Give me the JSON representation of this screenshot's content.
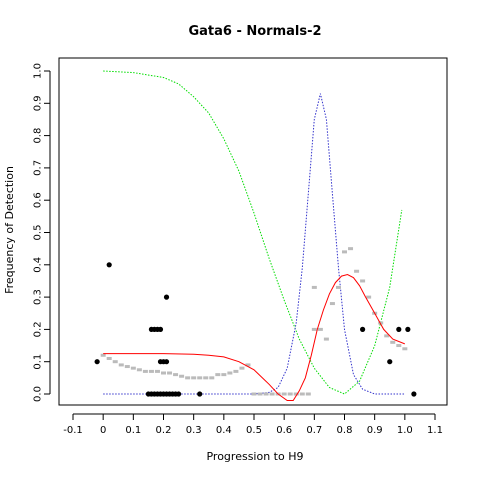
{
  "chart_data": {
    "type": "scatter",
    "title": "Gata6 - Normals-2",
    "xlabel": "Progression to H9",
    "ylabel": "Frequency of Detection",
    "xlim": [
      -0.1,
      1.1
    ],
    "ylim": [
      0.0,
      1.0
    ],
    "x_ticks": [
      "-0.1",
      "0",
      "0.1",
      "0.2",
      "0.3",
      "0.4",
      "0.5",
      "0.6",
      "0.7",
      "0.8",
      "0.9",
      "1.0",
      "1.1"
    ],
    "y_ticks": [
      "0.0",
      "0.1",
      "0.2",
      "0.3",
      "0.4",
      "0.5",
      "0.6",
      "0.7",
      "0.8",
      "0.9",
      "1.0"
    ],
    "grid": false,
    "legend": "none",
    "colors": {
      "points": "#000000",
      "smoothed": "#bbbbbb",
      "fit": "#ff0000",
      "green": "#00dd00",
      "blue": "#3333cc"
    },
    "series": [
      {
        "style": "points",
        "x": [
          -0.02,
          0.02,
          0.15,
          0.16,
          0.17,
          0.18,
          0.19,
          0.16,
          0.17,
          0.18,
          0.19,
          0.2,
          0.21,
          0.22,
          0.23,
          0.24,
          0.25,
          0.19,
          0.2,
          0.21,
          0.21,
          0.32,
          0.86,
          0.95,
          0.98,
          1.01,
          1.03
        ],
        "y": [
          0.1,
          0.4,
          0.0,
          0.0,
          0.0,
          0.0,
          0.0,
          0.2,
          0.2,
          0.2,
          0.2,
          0.0,
          0.0,
          0.0,
          0.0,
          0.0,
          0.0,
          0.1,
          0.1,
          0.1,
          0.3,
          0.0,
          0.2,
          0.1,
          0.2,
          0.2,
          0.0
        ]
      },
      {
        "style": "smoothed",
        "x": [
          0.0,
          0.02,
          0.04,
          0.06,
          0.08,
          0.1,
          0.12,
          0.14,
          0.16,
          0.18,
          0.2,
          0.22,
          0.24,
          0.26,
          0.28,
          0.3,
          0.32,
          0.34,
          0.36,
          0.38,
          0.4,
          0.42,
          0.44,
          0.46,
          0.48,
          0.5,
          0.52,
          0.54,
          0.56,
          0.58,
          0.6,
          0.62,
          0.64,
          0.66,
          0.68,
          0.7,
          0.7,
          0.72,
          0.74,
          0.76,
          0.78,
          0.8,
          0.82,
          0.84,
          0.86,
          0.88,
          0.9,
          0.92,
          0.94,
          0.96,
          0.98,
          1.0
        ],
        "y": [
          0.12,
          0.11,
          0.1,
          0.09,
          0.085,
          0.08,
          0.075,
          0.07,
          0.07,
          0.07,
          0.065,
          0.065,
          0.06,
          0.055,
          0.05,
          0.05,
          0.05,
          0.05,
          0.05,
          0.06,
          0.06,
          0.065,
          0.07,
          0.08,
          0.09,
          0.0,
          0.0,
          0.0,
          0.0,
          0.0,
          0.0,
          0.0,
          0.0,
          0.0,
          0.0,
          0.33,
          0.2,
          0.2,
          0.17,
          0.28,
          0.33,
          0.44,
          0.45,
          0.38,
          0.35,
          0.3,
          0.25,
          0.22,
          0.18,
          0.16,
          0.15,
          0.14
        ]
      },
      {
        "style": "fit",
        "x": [
          0.0,
          0.1,
          0.2,
          0.3,
          0.35,
          0.4,
          0.45,
          0.5,
          0.55,
          0.58,
          0.61,
          0.63,
          0.65,
          0.67,
          0.69,
          0.71,
          0.73,
          0.75,
          0.77,
          0.79,
          0.81,
          0.83,
          0.85,
          0.87,
          0.9,
          0.93,
          0.96,
          1.0
        ],
        "y": [
          0.125,
          0.125,
          0.125,
          0.123,
          0.12,
          0.115,
          0.1,
          0.075,
          0.03,
          0.0,
          -0.02,
          -0.02,
          0.01,
          0.05,
          0.12,
          0.2,
          0.26,
          0.31,
          0.345,
          0.365,
          0.37,
          0.36,
          0.335,
          0.3,
          0.25,
          0.2,
          0.17,
          0.155
        ]
      },
      {
        "style": "green",
        "x": [
          0.0,
          0.1,
          0.2,
          0.25,
          0.3,
          0.35,
          0.4,
          0.45,
          0.5,
          0.55,
          0.6,
          0.65,
          0.7,
          0.75,
          0.8,
          0.85,
          0.9,
          0.95,
          0.99
        ],
        "y": [
          1.0,
          0.995,
          0.98,
          0.96,
          0.92,
          0.87,
          0.79,
          0.69,
          0.56,
          0.42,
          0.29,
          0.17,
          0.08,
          0.02,
          0.0,
          0.04,
          0.15,
          0.33,
          0.57
        ]
      },
      {
        "style": "blue",
        "x": [
          0.0,
          0.5,
          0.55,
          0.58,
          0.61,
          0.64,
          0.66,
          0.68,
          0.7,
          0.72,
          0.74,
          0.76,
          0.78,
          0.8,
          0.83,
          0.86,
          0.9,
          1.0
        ],
        "y": [
          0.0,
          0.0,
          0.005,
          0.02,
          0.08,
          0.22,
          0.39,
          0.62,
          0.85,
          0.93,
          0.85,
          0.62,
          0.39,
          0.2,
          0.06,
          0.015,
          0.0,
          0.0
        ]
      }
    ]
  }
}
